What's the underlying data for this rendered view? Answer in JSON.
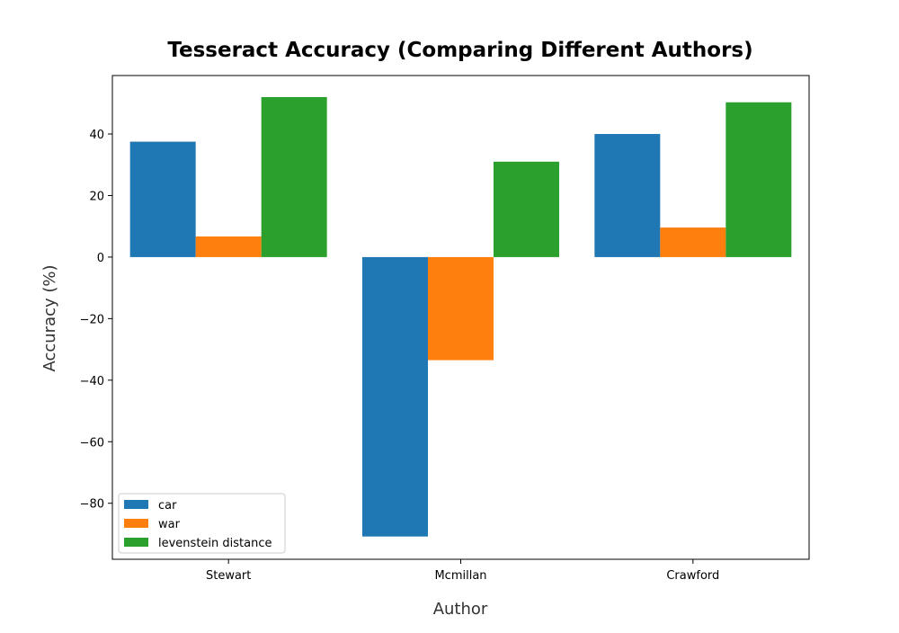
{
  "chart_data": {
    "type": "bar",
    "title": "Tesseract Accuracy (Comparing Different Authors)",
    "xlabel": "Author",
    "ylabel": "Accuracy (%)",
    "categories": [
      "Stewart",
      "Mcmillan",
      "Crawford"
    ],
    "series": [
      {
        "name": "car",
        "values": [
          37.5,
          -90.8,
          40.0
        ],
        "color": "#1f77b4"
      },
      {
        "name": "war",
        "values": [
          6.7,
          -33.5,
          9.6
        ],
        "color": "#ff7f0e"
      },
      {
        "name": "levenstein distance",
        "values": [
          52.0,
          31.0,
          50.3
        ],
        "color": "#2ca02c"
      }
    ],
    "ylim": [
      -98.2,
      59.0
    ],
    "yticks": [
      -80,
      -60,
      -40,
      -20,
      0,
      20,
      40
    ],
    "ytick_labels": [
      "−80",
      "−60",
      "−40",
      "−20",
      "0",
      "20",
      "40"
    ],
    "legend_position": "lower-left",
    "grid": false
  }
}
